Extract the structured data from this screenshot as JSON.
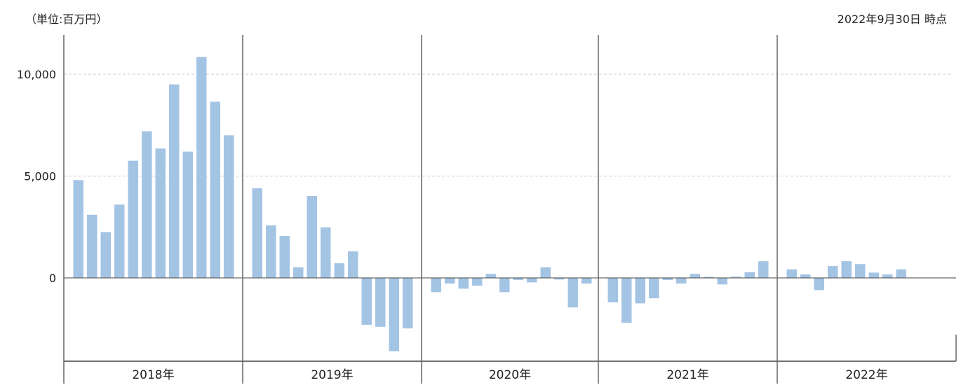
{
  "header": {
    "unit": "（単位:百万円）",
    "as_of": "2022年9月30日 時点"
  },
  "chart_data": {
    "type": "bar",
    "title": "",
    "xlabel": "",
    "ylabel": "",
    "ylim": [
      -4000,
      12000
    ],
    "yticks": [
      0,
      5000,
      10000
    ],
    "ytick_labels": [
      "0",
      "5,000",
      "10,000"
    ],
    "grid": "horizontal dashed at 5,000 and 10,000",
    "bar_color": "#a4c4e4",
    "groups": [
      {
        "label": "2018年",
        "values": [
          4800,
          3100,
          2250,
          3600,
          5750,
          7200,
          6350,
          9500,
          6200,
          10850,
          8650,
          7000
        ]
      },
      {
        "label": "2019年",
        "values": [
          4400,
          2580,
          2060,
          520,
          4020,
          2480,
          720,
          1300,
          -2300,
          -2400,
          -3600,
          -2480
        ]
      },
      {
        "label": "2020年",
        "values": [
          -700,
          -280,
          -530,
          -380,
          200,
          -700,
          -100,
          -220,
          520,
          -80,
          -1450,
          -280
        ]
      },
      {
        "label": "2021年",
        "values": [
          -1200,
          -2200,
          -1250,
          -1000,
          -100,
          -280,
          200,
          50,
          -320,
          60,
          280,
          820
        ]
      },
      {
        "label": "2022年",
        "values": [
          420,
          170,
          -600,
          580,
          820,
          680,
          260,
          170,
          420
        ]
      }
    ]
  }
}
